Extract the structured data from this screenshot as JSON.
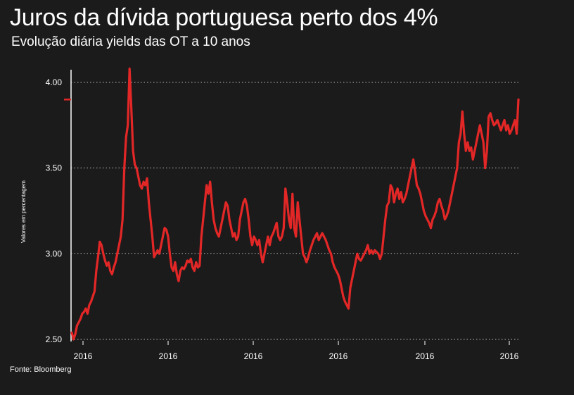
{
  "title": "Juros da dívida portuguesa perto dos 4%",
  "subtitle": "Evolução diária yields das OT a 10 anos",
  "source": "Fonte: Bloomberg",
  "colors": {
    "background": "#1c1b1b",
    "line": "#e32727",
    "text": "#ffffff",
    "grid": "#bbbbbb"
  },
  "chart_data": {
    "type": "line",
    "title": "Juros da dívida portuguesa perto dos 4%",
    "subtitle": "Evolução diária yields das OT a 10 anos",
    "ylabel": "Valores em percentagem",
    "xlabel": "",
    "ylim": [
      2.5,
      4.08
    ],
    "yticks": [
      2.5,
      3.0,
      3.5,
      4.0
    ],
    "ytick_labels": [
      "2.50",
      "3.00",
      "3.50",
      "4.00"
    ],
    "xtick_labels": [
      "2016",
      "2016",
      "2016",
      "2016",
      "2016",
      "2016"
    ],
    "grid": "horizontal dotted",
    "marker_value": 3.9,
    "series": [
      {
        "values": [
          2.54,
          2.5,
          2.53,
          2.58,
          2.6,
          2.62,
          2.65,
          2.66,
          2.68,
          2.65,
          2.7,
          2.72,
          2.75,
          2.78,
          2.9,
          2.98,
          3.07,
          3.05,
          3.0,
          2.96,
          2.93,
          2.95,
          2.9,
          2.88,
          2.92,
          2.95,
          3.0,
          3.05,
          3.1,
          3.2,
          3.5,
          3.68,
          3.75,
          4.08,
          3.85,
          3.6,
          3.52,
          3.5,
          3.45,
          3.4,
          3.38,
          3.42,
          3.4,
          3.44,
          3.3,
          3.2,
          3.1,
          2.98,
          3.0,
          3.02,
          3.0,
          3.05,
          3.1,
          3.15,
          3.14,
          3.1,
          3.0,
          2.92,
          2.9,
          2.95,
          2.88,
          2.84,
          2.9,
          2.92,
          2.91,
          2.93,
          2.96,
          2.95,
          2.97,
          2.92,
          2.9,
          2.95,
          2.92,
          2.93,
          3.1,
          3.2,
          3.3,
          3.4,
          3.35,
          3.42,
          3.3,
          3.2,
          3.15,
          3.12,
          3.1,
          3.15,
          3.2,
          3.25,
          3.3,
          3.28,
          3.2,
          3.15,
          3.1,
          3.12,
          3.08,
          3.1,
          3.2,
          3.25,
          3.3,
          3.32,
          3.28,
          3.2,
          3.1,
          3.05,
          3.1,
          3.08,
          3.05,
          3.08,
          3.0,
          2.95,
          3.0,
          3.05,
          3.1,
          3.05,
          3.1,
          3.12,
          3.15,
          3.18,
          3.1,
          3.08,
          3.1,
          3.15,
          3.38,
          3.3,
          3.2,
          3.15,
          3.35,
          3.15,
          3.1,
          3.3,
          3.2,
          3.1,
          3.0,
          2.98,
          2.95,
          2.98,
          3.02,
          3.05,
          3.08,
          3.1,
          3.12,
          3.08,
          3.1,
          3.12,
          3.1,
          3.08,
          3.05,
          3.02,
          3.0,
          2.95,
          2.92,
          2.9,
          2.88,
          2.85,
          2.8,
          2.75,
          2.72,
          2.7,
          2.68,
          2.8,
          2.85,
          2.9,
          2.95,
          3.0,
          2.97,
          2.96,
          2.98,
          3.0,
          3.02,
          3.05,
          3.0,
          3.02,
          3.0,
          3.02,
          3.01,
          3.0,
          2.97,
          3.0,
          3.1,
          3.2,
          3.28,
          3.3,
          3.4,
          3.38,
          3.3,
          3.35,
          3.38,
          3.32,
          3.36,
          3.3,
          3.32,
          3.35,
          3.4,
          3.45,
          3.5,
          3.55,
          3.48,
          3.4,
          3.38,
          3.35,
          3.3,
          3.25,
          3.22,
          3.2,
          3.18,
          3.15,
          3.2,
          3.22,
          3.25,
          3.3,
          3.32,
          3.28,
          3.25,
          3.2,
          3.22,
          3.25,
          3.3,
          3.35,
          3.4,
          3.45,
          3.5,
          3.65,
          3.7,
          3.83,
          3.7,
          3.6,
          3.65,
          3.6,
          3.62,
          3.55,
          3.6,
          3.65,
          3.7,
          3.75,
          3.7,
          3.65,
          3.5,
          3.6,
          3.8,
          3.82,
          3.78,
          3.75,
          3.76,
          3.78,
          3.75,
          3.72,
          3.75,
          3.78,
          3.72,
          3.75,
          3.7,
          3.72,
          3.75,
          3.78,
          3.7,
          3.9
        ]
      }
    ]
  }
}
